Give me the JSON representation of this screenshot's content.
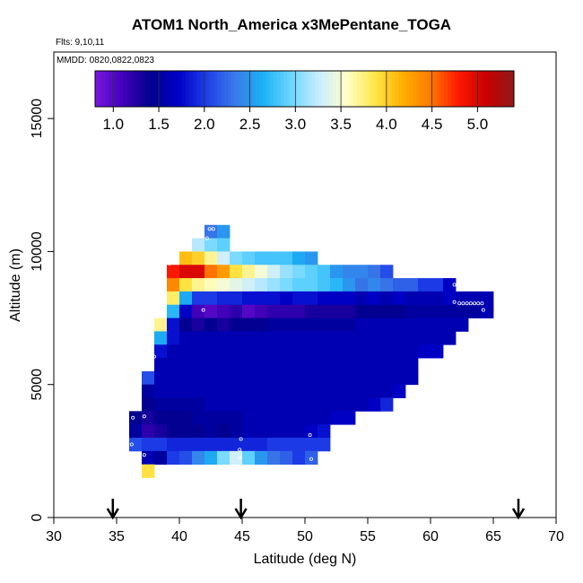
{
  "title": "ATOM1 North_America x3MePentane_TOGA",
  "flights_label": "Flts: 9,10,11",
  "mmdd_label": "MMDD: 0820,0822,0823",
  "colors": {
    "colorbar": [
      "#7a17e0",
      "#3f00b8",
      "#00008f",
      "#0000c8",
      "#1f3fe8",
      "#3a7ae8",
      "#1ab0f5",
      "#6ad6ff",
      "#c8ecff",
      "#ffffcc",
      "#ffe84a",
      "#ffb000",
      "#ff7a00",
      "#ff1a00",
      "#c80000",
      "#8f1a1a"
    ]
  },
  "chart_data": {
    "type": "heatmap",
    "title": "ATOM1 North_America x3MePentane_TOGA",
    "xlabel": "Latitude (deg N)",
    "ylabel": "Altitude (m)",
    "xlim": [
      30,
      70
    ],
    "ylim": [
      0,
      17500
    ],
    "xticks": [
      30,
      35,
      40,
      45,
      50,
      55,
      60,
      65,
      70
    ],
    "yticks": [
      0,
      5000,
      10000,
      15000
    ],
    "colorbar": {
      "range": [
        0.8,
        5.4
      ],
      "ticks": [
        1.0,
        1.5,
        2.0,
        2.5,
        3.0,
        3.5,
        4.0,
        4.5,
        5.0
      ],
      "tick_labels": [
        "1.0",
        "1.5",
        "2.0",
        "2.5",
        "3.0",
        "3.5",
        "4.0",
        "4.5",
        "5.0"
      ]
    },
    "lat_bin_width": 1.0,
    "alt_bin_height": 500,
    "rows": [
      {
        "alt": 10750,
        "lat_start": 42.0,
        "values": [
          2.3,
          2.5
        ]
      },
      {
        "alt": 10250,
        "lat_start": 41.0,
        "values": [
          3.2,
          3.0,
          2.9
        ]
      },
      {
        "alt": 9750,
        "lat_start": 40.0,
        "values": [
          4.1,
          4.0,
          3.7,
          3.3,
          3.0,
          2.9,
          2.8,
          2.8,
          2.8,
          2.6,
          2.5
        ]
      },
      {
        "alt": 9250,
        "lat_start": 39.0,
        "values": [
          4.8,
          5.0,
          5.0,
          4.5,
          4.3,
          3.9,
          3.7,
          3.5,
          3.3,
          3.1,
          3.0,
          2.9,
          2.8,
          2.5,
          2.4,
          2.4,
          2.3,
          2.1
        ]
      },
      {
        "alt": 8750,
        "lat_start": 39.0,
        "values": [
          4.4,
          3.9,
          3.7,
          3.6,
          3.5,
          3.4,
          3.3,
          3.2,
          3.1,
          3.0,
          2.9,
          2.9,
          2.8,
          2.7,
          2.5,
          2.3,
          2.4,
          2.3,
          2.2,
          2.2,
          2.0,
          2.0,
          1.7
        ]
      },
      {
        "alt": 8250,
        "lat_start": 39.0,
        "values": [
          3.8,
          2.6,
          2.0,
          2.0,
          1.9,
          1.9,
          1.8,
          1.8,
          1.8,
          1.7,
          1.8,
          1.8,
          1.7,
          1.7,
          1.7,
          1.6,
          1.7,
          1.6,
          1.7,
          1.6,
          1.6,
          1.6,
          1.7,
          1.6,
          1.6,
          1.6
        ]
      },
      {
        "alt": 7750,
        "lat_start": 39.0,
        "values": [
          2.7,
          1.7,
          1.1,
          1.0,
          1.1,
          1.2,
          1.0,
          1.1,
          1.2,
          1.2,
          1.2,
          1.3,
          1.3,
          1.3,
          1.3,
          1.4,
          1.4,
          1.4,
          1.4,
          1.5,
          1.5,
          1.5,
          1.5,
          1.5,
          1.5,
          1.6
        ]
      },
      {
        "alt": 7250,
        "lat_start": 38.0,
        "values": [
          3.7,
          1.8,
          1.4,
          1.3,
          1.4,
          1.3,
          1.4,
          1.4,
          1.4,
          1.5,
          1.5,
          1.5,
          1.5,
          1.5,
          1.5,
          1.5,
          1.6,
          1.6,
          1.6,
          1.6,
          1.6,
          1.6,
          1.6,
          1.6,
          1.6
        ]
      },
      {
        "alt": 6750,
        "lat_start": 38.0,
        "values": [
          2.6,
          1.8,
          1.6,
          1.6,
          1.6,
          1.6,
          1.6,
          1.6,
          1.6,
          1.6,
          1.6,
          1.6,
          1.6,
          1.6,
          1.6,
          1.6,
          1.6,
          1.6,
          1.6,
          1.6,
          1.6,
          1.6,
          1.6,
          1.6
        ]
      },
      {
        "alt": 6250,
        "lat_start": 38.0,
        "values": [
          1.8,
          1.6,
          1.6,
          1.6,
          1.6,
          1.6,
          1.6,
          1.6,
          1.6,
          1.6,
          1.6,
          1.6,
          1.6,
          1.6,
          1.6,
          1.6,
          1.6,
          1.6,
          1.6,
          1.6,
          1.6,
          1.7,
          1.7
        ]
      },
      {
        "alt": 5750,
        "lat_start": 38.0,
        "values": [
          1.6,
          1.6,
          1.6,
          1.6,
          1.6,
          1.6,
          1.6,
          1.6,
          1.6,
          1.6,
          1.6,
          1.6,
          1.6,
          1.6,
          1.6,
          1.6,
          1.6,
          1.6,
          1.6,
          1.6,
          1.6
        ]
      },
      {
        "alt": 5250,
        "lat_start": 37.0,
        "values": [
          2.1,
          1.6,
          1.6,
          1.6,
          1.6,
          1.6,
          1.6,
          1.6,
          1.6,
          1.6,
          1.6,
          1.6,
          1.6,
          1.6,
          1.6,
          1.6,
          1.6,
          1.6,
          1.6,
          1.6,
          1.6,
          1.6
        ]
      },
      {
        "alt": 4750,
        "lat_start": 37.0,
        "values": [
          1.5,
          1.6,
          1.6,
          1.6,
          1.6,
          1.6,
          1.6,
          1.6,
          1.6,
          1.6,
          1.6,
          1.6,
          1.6,
          1.6,
          1.6,
          1.6,
          1.6,
          1.6,
          1.6,
          1.6,
          1.7
        ]
      },
      {
        "alt": 4250,
        "lat_start": 37.0,
        "values": [
          1.4,
          1.5,
          1.5,
          1.5,
          1.5,
          1.6,
          1.6,
          1.6,
          1.6,
          1.6,
          1.6,
          1.6,
          1.6,
          1.6,
          1.6,
          1.6,
          1.6,
          1.6,
          1.7,
          1.9
        ]
      },
      {
        "alt": 3750,
        "lat_start": 36.0,
        "values": [
          1.4,
          1.3,
          1.4,
          1.4,
          1.4,
          1.5,
          1.5,
          1.5,
          1.5,
          1.6,
          1.6,
          1.6,
          1.6,
          1.6,
          1.6,
          1.6,
          1.7,
          1.7
        ]
      },
      {
        "alt": 3250,
        "lat_start": 36.0,
        "values": [
          1.5,
          1.2,
          1.3,
          1.4,
          1.4,
          1.4,
          1.5,
          1.4,
          1.5,
          1.6,
          1.6,
          1.6,
          1.6,
          1.6,
          1.7,
          1.8
        ]
      },
      {
        "alt": 2750,
        "lat_start": 36.0,
        "values": [
          2.1,
          2.0,
          2.0,
          1.9,
          1.9,
          1.9,
          1.9,
          1.9,
          1.9,
          1.9,
          1.9,
          2.0,
          2.0,
          2.0,
          2.0,
          2.0
        ]
      },
      {
        "alt": 2250,
        "lat_start": 37.0,
        "values": [
          1.6,
          1.5,
          2.0,
          2.1,
          2.4,
          2.6,
          3.0,
          3.3,
          2.9,
          2.5,
          2.3,
          2.2,
          2.0,
          2.2
        ]
      },
      {
        "alt": 1750,
        "lat_start": 37.0,
        "values": [
          3.9
        ]
      }
    ],
    "sample_points": [
      {
        "lat": 42.4,
        "alt": 10850
      },
      {
        "lat": 42.7,
        "alt": 10850
      },
      {
        "lat": 42.2,
        "alt": 10500
      },
      {
        "lat": 39.2,
        "alt": 9550
      },
      {
        "lat": 41.9,
        "alt": 7800
      },
      {
        "lat": 61.9,
        "alt": 8750
      },
      {
        "lat": 61.9,
        "alt": 8100
      },
      {
        "lat": 62.3,
        "alt": 8050
      },
      {
        "lat": 62.6,
        "alt": 8050
      },
      {
        "lat": 62.9,
        "alt": 8050
      },
      {
        "lat": 63.2,
        "alt": 8050
      },
      {
        "lat": 63.5,
        "alt": 8050
      },
      {
        "lat": 63.8,
        "alt": 8050
      },
      {
        "lat": 64.1,
        "alt": 8050
      },
      {
        "lat": 64.2,
        "alt": 7800
      },
      {
        "lat": 38.0,
        "alt": 6050
      },
      {
        "lat": 36.3,
        "alt": 3750
      },
      {
        "lat": 37.2,
        "alt": 3800
      },
      {
        "lat": 36.2,
        "alt": 2750
      },
      {
        "lat": 37.2,
        "alt": 2350
      },
      {
        "lat": 44.9,
        "alt": 2950
      },
      {
        "lat": 44.8,
        "alt": 2550
      },
      {
        "lat": 44.8,
        "alt": 2250
      },
      {
        "lat": 50.4,
        "alt": 3100
      },
      {
        "lat": 50.5,
        "alt": 2200
      }
    ],
    "arrow_latitudes": [
      34.7,
      44.9,
      67.0
    ]
  }
}
